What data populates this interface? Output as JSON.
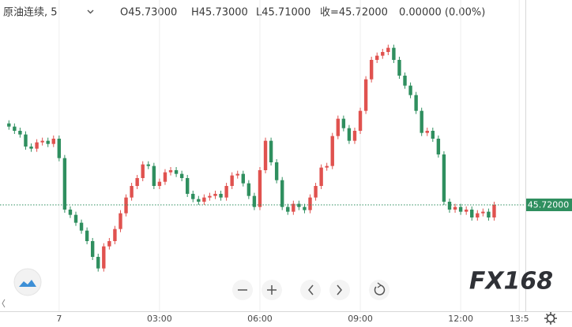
{
  "chart_data": {
    "type": "candlestick",
    "title": "原油连续, 5",
    "legend_values": [
      "O45.73000",
      "H45.73000",
      "L45.71000",
      "收=45.72000",
      "0.00000 (0.00%)"
    ],
    "x": [
      -90,
      -80,
      -70,
      -60,
      -50,
      -40,
      -30,
      -20,
      -10,
      0,
      10,
      20,
      30,
      40,
      50,
      60,
      70,
      80,
      90,
      100,
      110,
      120,
      130,
      140,
      150,
      160,
      170,
      180,
      190,
      200,
      210,
      220,
      230,
      240,
      250,
      260,
      270,
      280,
      290,
      300,
      310,
      320,
      330,
      340,
      350,
      360,
      370,
      380,
      390,
      400,
      410,
      420,
      430,
      440,
      450,
      460,
      470,
      480,
      490,
      500,
      510,
      520,
      530,
      540,
      550,
      560,
      570,
      580,
      590,
      600,
      610,
      620,
      630,
      640,
      650,
      660,
      670,
      680,
      690,
      700,
      710,
      720,
      730,
      740,
      750,
      760,
      770,
      780
    ],
    "open": [
      45.875,
      45.869,
      45.861,
      45.854,
      45.831,
      45.827,
      45.839,
      45.842,
      45.836,
      45.846,
      45.809,
      45.711,
      45.701,
      45.686,
      45.671,
      45.651,
      45.621,
      45.599,
      45.641,
      45.651,
      45.674,
      45.704,
      45.734,
      45.756,
      45.771,
      45.797,
      45.794,
      45.756,
      45.764,
      45.782,
      45.786,
      45.779,
      45.771,
      45.741,
      45.731,
      45.726,
      45.734,
      45.737,
      45.741,
      45.734,
      45.756,
      45.776,
      45.779,
      45.761,
      45.737,
      45.716,
      45.786,
      45.842,
      45.801,
      45.767,
      45.716,
      45.707,
      45.722,
      45.716,
      45.71,
      45.734,
      45.756,
      45.791,
      45.794,
      45.851,
      45.884,
      45.866,
      45.842,
      45.861,
      45.899,
      45.959,
      45.996,
      46.004,
      46.011,
      46.019,
      45.996,
      45.966,
      45.947,
      45.929,
      45.899,
      45.857,
      45.861,
      45.846,
      45.816,
      45.726,
      45.711,
      45.716,
      45.707,
      45.711,
      45.696,
      45.704,
      45.707,
      45.696
    ],
    "high": [
      45.881,
      45.875,
      45.867,
      45.86,
      45.837,
      45.845,
      45.848,
      45.848,
      45.852,
      45.852,
      45.815,
      45.717,
      45.707,
      45.692,
      45.677,
      45.657,
      45.627,
      45.647,
      45.657,
      45.68,
      45.71,
      45.74,
      45.762,
      45.777,
      45.803,
      45.803,
      45.8,
      45.77,
      45.788,
      45.792,
      45.792,
      45.785,
      45.777,
      45.747,
      45.737,
      45.74,
      45.743,
      45.747,
      45.747,
      45.762,
      45.782,
      45.785,
      45.785,
      45.767,
      45.743,
      45.792,
      45.848,
      45.848,
      45.807,
      45.773,
      45.722,
      45.728,
      45.728,
      45.722,
      45.74,
      45.762,
      45.797,
      45.8,
      45.857,
      45.89,
      45.89,
      45.872,
      45.867,
      45.905,
      45.965,
      46.002,
      46.01,
      46.017,
      46.025,
      46.025,
      46.002,
      45.972,
      45.953,
      45.935,
      45.905,
      45.867,
      45.867,
      45.852,
      45.822,
      45.732,
      45.722,
      45.722,
      45.717,
      45.717,
      45.71,
      45.713,
      45.713,
      45.726
    ],
    "low": [
      45.863,
      45.855,
      45.848,
      45.825,
      45.821,
      45.821,
      45.833,
      45.83,
      45.83,
      45.803,
      45.705,
      45.695,
      45.68,
      45.665,
      45.645,
      45.615,
      45.593,
      45.593,
      45.635,
      45.645,
      45.668,
      45.698,
      45.728,
      45.75,
      45.765,
      45.788,
      45.75,
      45.75,
      45.758,
      45.776,
      45.773,
      45.765,
      45.735,
      45.725,
      45.72,
      45.72,
      45.728,
      45.731,
      45.728,
      45.728,
      45.75,
      45.77,
      45.755,
      45.731,
      45.71,
      45.71,
      45.78,
      45.795,
      45.761,
      45.71,
      45.701,
      45.701,
      45.71,
      45.704,
      45.704,
      45.728,
      45.75,
      45.785,
      45.788,
      45.845,
      45.86,
      45.836,
      45.836,
      45.855,
      45.893,
      45.953,
      45.99,
      45.998,
      46.005,
      45.99,
      45.96,
      45.941,
      45.923,
      45.893,
      45.851,
      45.851,
      45.84,
      45.81,
      45.72,
      45.705,
      45.705,
      45.701,
      45.701,
      45.69,
      45.69,
      45.698,
      45.69,
      45.69
    ],
    "close": [
      45.869,
      45.861,
      45.854,
      45.831,
      45.827,
      45.839,
      45.842,
      45.836,
      45.846,
      45.809,
      45.711,
      45.701,
      45.686,
      45.671,
      45.651,
      45.621,
      45.599,
      45.641,
      45.651,
      45.674,
      45.704,
      45.734,
      45.756,
      45.771,
      45.797,
      45.794,
      45.756,
      45.764,
      45.782,
      45.786,
      45.779,
      45.771,
      45.741,
      45.731,
      45.726,
      45.734,
      45.737,
      45.741,
      45.734,
      45.756,
      45.776,
      45.779,
      45.761,
      45.737,
      45.716,
      45.786,
      45.842,
      45.801,
      45.767,
      45.716,
      45.707,
      45.722,
      45.716,
      45.71,
      45.734,
      45.756,
      45.791,
      45.794,
      45.851,
      45.884,
      45.866,
      45.842,
      45.861,
      45.899,
      45.959,
      45.996,
      46.004,
      46.011,
      46.019,
      45.996,
      45.966,
      45.947,
      45.929,
      45.899,
      45.857,
      45.861,
      45.846,
      45.816,
      45.726,
      45.711,
      45.716,
      45.707,
      45.711,
      45.696,
      45.704,
      45.707,
      45.696,
      45.72
    ],
    "up_color": "#e0524f",
    "down_color": "#2f8f5f",
    "xlim": [
      -106,
      836
    ],
    "xticks": [
      {
        "value": 0,
        "label": "7"
      },
      {
        "value": 180,
        "label": "03:00"
      },
      {
        "value": 360,
        "label": "06:00"
      },
      {
        "value": 540,
        "label": "09:00"
      },
      {
        "value": 720,
        "label": "12:00"
      },
      {
        "value": 825,
        "label": "13:5"
      }
    ],
    "ylim": [
      45.525,
      46.065
    ],
    "last_price": {
      "value": 45.72,
      "label": "45.72000"
    },
    "grid": true
  },
  "logo": "FX168"
}
